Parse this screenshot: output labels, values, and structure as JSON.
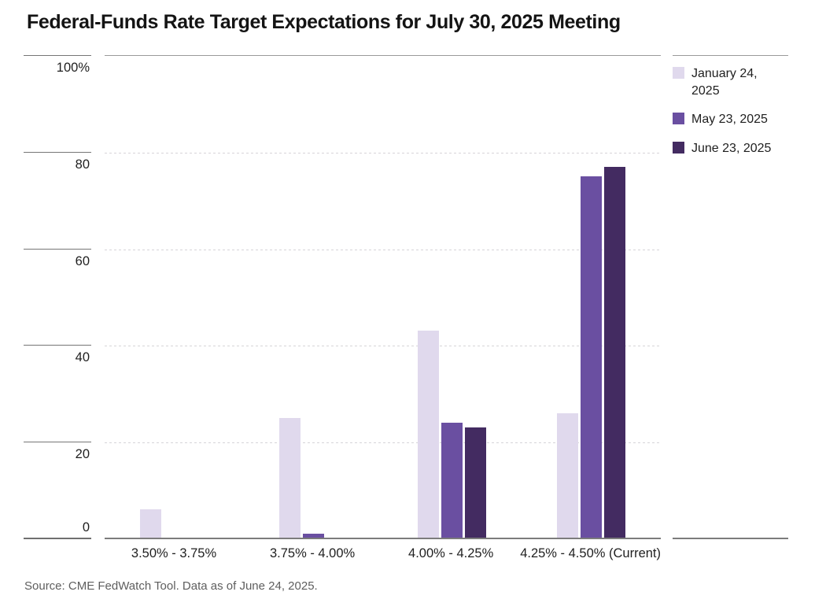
{
  "title": "Federal-Funds Rate Target Expectations for July 30, 2025 Meeting",
  "source": "Source: CME FedWatch Tool. Data as of June 24, 2025.",
  "colors": {
    "series_jan": "#e0d9ed",
    "series_may": "#6a4fa1",
    "series_jun": "#432b61",
    "gridline": "#d6d4d8",
    "axis_line": "#9a9a9a",
    "baseline": "#7c7c7c",
    "text": "#1f1f1f",
    "source_text": "#5e5e5e"
  },
  "chart_data": {
    "type": "bar",
    "title": "Federal-Funds Rate Target Expectations for July 30, 2025 Meeting",
    "categories": [
      "3.50% - 3.75%",
      "3.75% - 4.00%",
      "4.00% - 4.25%",
      "4.25% - 4.50% (Current)"
    ],
    "series": [
      {
        "name": "January 24, 2025",
        "color": "#e0d9ed",
        "values": [
          6,
          25,
          43,
          26
        ]
      },
      {
        "name": "May 23, 2025",
        "color": "#6a4fa1",
        "values": [
          0,
          1,
          24,
          75
        ]
      },
      {
        "name": "June 23, 2025",
        "color": "#432b61",
        "values": [
          0,
          0,
          23,
          77
        ]
      }
    ],
    "xlabel": "",
    "ylabel": "",
    "ylim": [
      0,
      100
    ],
    "yticks": [
      {
        "value": 100,
        "label": "100%"
      },
      {
        "value": 80,
        "label": "80"
      },
      {
        "value": 60,
        "label": "60"
      },
      {
        "value": 40,
        "label": "40"
      },
      {
        "value": 20,
        "label": "20"
      },
      {
        "value": 0,
        "label": "0"
      }
    ],
    "grid": "horizontal-dashed",
    "legend_position": "right"
  }
}
